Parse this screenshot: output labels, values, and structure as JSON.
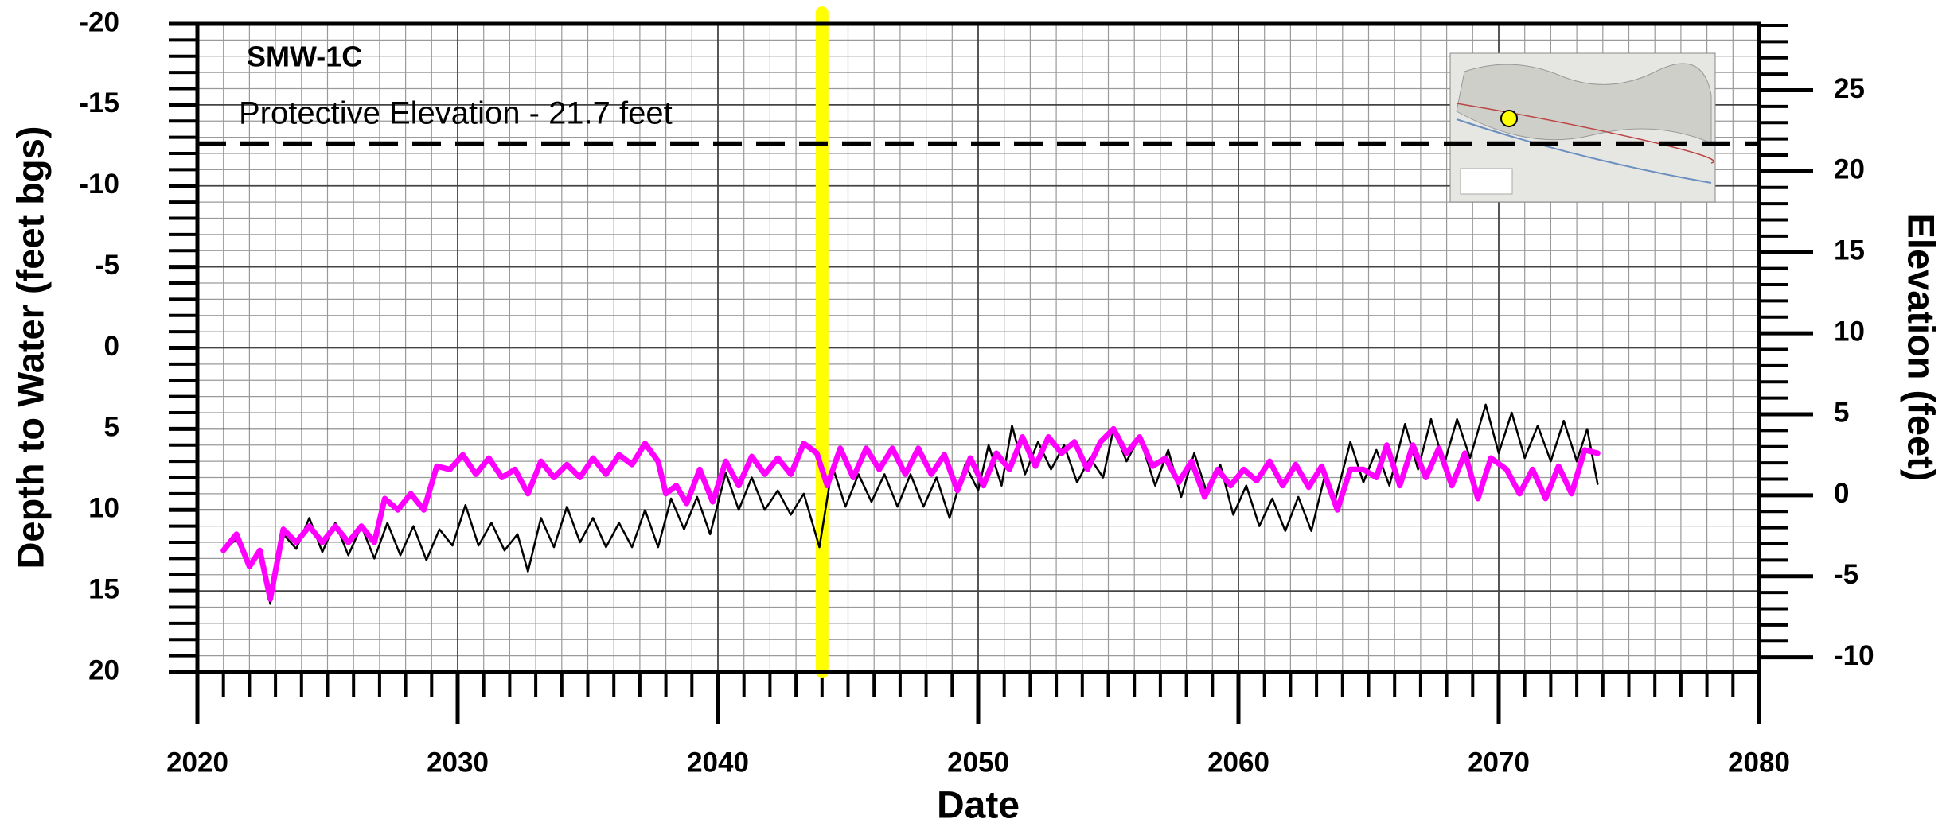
{
  "chart_data": {
    "type": "line",
    "title": "SMW-1C",
    "xlabel": "Date",
    "ylabel": "Depth to Water (feet bgs)",
    "y2label": "Elevation (feet)",
    "xlim": [
      2020,
      2080
    ],
    "xticks": [
      2020,
      2030,
      2040,
      2050,
      2060,
      2070,
      2080
    ],
    "xminorticks": [
      2021,
      2022,
      2023,
      2024,
      2025,
      2026,
      2027,
      2028,
      2029,
      2031,
      2032,
      2033,
      2034,
      2035,
      2036,
      2037,
      2038,
      2039,
      2041,
      2042,
      2043,
      2044,
      2045,
      2046,
      2047,
      2048,
      2049,
      2051,
      2052,
      2053,
      2054,
      2055,
      2056,
      2057,
      2058,
      2059,
      2061,
      2062,
      2063,
      2064,
      2065,
      2066,
      2067,
      2068,
      2069,
      2071,
      2072,
      2073,
      2074,
      2075,
      2076,
      2077,
      2078,
      2079
    ],
    "ylim": [
      20,
      -20
    ],
    "yticks": [
      -20,
      -15,
      -10,
      -5,
      0,
      5,
      10,
      15,
      20
    ],
    "yminorticks": [
      -19,
      -18,
      -17,
      -16,
      -14,
      -13,
      -12,
      -11,
      -9,
      -8,
      -7,
      -6,
      -4,
      -3,
      -2,
      -1,
      1,
      2,
      3,
      4,
      6,
      7,
      8,
      9,
      11,
      12,
      13,
      14,
      16,
      17,
      18,
      19
    ],
    "y2lim": [
      -10.9,
      29.1
    ],
    "y2ticks": [
      -10,
      -5,
      0,
      5,
      10,
      15,
      20,
      25
    ],
    "y2minorticks": [
      -9,
      -8,
      -7,
      -6,
      -4,
      -3,
      -2,
      -1,
      1,
      2,
      3,
      4,
      6,
      7,
      8,
      9,
      11,
      12,
      13,
      14,
      16,
      17,
      18,
      19,
      21,
      22,
      23,
      24,
      26,
      27,
      28,
      29
    ],
    "grid": true,
    "protective_elevation": {
      "value": 21.7,
      "label": "Protective Elevation - 21.7 feet",
      "axis": "y2",
      "color": "#000000"
    },
    "highlight_x": {
      "value": 2044.0,
      "color": "#ffff00"
    },
    "series": [
      {
        "color": "#000000",
        "x": [
          2021,
          2021.5,
          2022,
          2022.4,
          2022.8,
          2023.3,
          2023.8,
          2024.3,
          2024.8,
          2025.3,
          2025.8,
          2026.3,
          2026.8,
          2027.3,
          2027.8,
          2028.3,
          2028.8,
          2029.3,
          2029.8,
          2030.3,
          2030.8,
          2031.3,
          2031.8,
          2032.3,
          2032.7,
          2033.2,
          2033.7,
          2034.2,
          2034.7,
          2035.2,
          2035.7,
          2036.2,
          2036.7,
          2037.2,
          2037.7,
          2038.2,
          2038.7,
          2039.2,
          2039.7,
          2040.3,
          2040.8,
          2041.3,
          2041.8,
          2042.3,
          2042.8,
          2043.3,
          2043.9,
          2044.4,
          2044.9,
          2045.4,
          2045.9,
          2046.4,
          2046.9,
          2047.4,
          2047.9,
          2048.4,
          2048.9,
          2049.5,
          2050,
          2050.4,
          2050.9,
          2051.3,
          2051.8,
          2052.3,
          2052.8,
          2053.3,
          2053.8,
          2054.3,
          2054.8,
          2055.2,
          2055.7,
          2056.2,
          2056.8,
          2057.3,
          2057.8,
          2058.3,
          2058.8,
          2059.3,
          2059.8,
          2060.3,
          2060.8,
          2061.3,
          2061.8,
          2062.3,
          2062.8,
          2063.3,
          2063.7,
          2064.3,
          2064.8,
          2065.3,
          2065.8,
          2066.4,
          2066.9,
          2067.4,
          2067.9,
          2068.4,
          2068.9,
          2069.5,
          2070,
          2070.5,
          2071,
          2071.5,
          2072,
          2072.5,
          2073,
          2073.4,
          2073.8
        ],
        "values": [
          12.5,
          11.8,
          13.6,
          12.6,
          15.8,
          11.5,
          12.4,
          10.5,
          12.6,
          10.8,
          12.8,
          11,
          13,
          10.8,
          12.8,
          11,
          13.1,
          11.2,
          12.2,
          9.7,
          12.2,
          10.8,
          12.5,
          11.5,
          13.8,
          10.5,
          12.3,
          9.8,
          12,
          10.5,
          12.3,
          10.8,
          12.3,
          10,
          12.3,
          9.3,
          11.2,
          9.2,
          11.5,
          7.7,
          10,
          8,
          10,
          8.8,
          10.3,
          9,
          12.3,
          7.3,
          9.8,
          7.8,
          9.5,
          7.8,
          9.8,
          7.8,
          9.8,
          8,
          10.5,
          7.2,
          8.8,
          6,
          8.5,
          4.8,
          7.8,
          5.8,
          7.5,
          6,
          8.3,
          6.8,
          8,
          5,
          7,
          5.5,
          8.5,
          6.3,
          9.2,
          6.5,
          9,
          7.2,
          10.3,
          8.5,
          11,
          9.3,
          11.3,
          9.2,
          11.3,
          8,
          9.5,
          5.8,
          8.3,
          6.3,
          8.5,
          4.7,
          7.5,
          4.4,
          7.2,
          4.4,
          6.8,
          3.5,
          6.5,
          4,
          6.8,
          4.8,
          7,
          4.5,
          7,
          5,
          8.4
        ]
      },
      {
        "color": "#ff00ff",
        "x": [
          2021,
          2021.5,
          2022,
          2022.4,
          2022.8,
          2023.3,
          2023.8,
          2024.3,
          2024.8,
          2025.3,
          2025.8,
          2026.3,
          2026.8,
          2027.2,
          2027.7,
          2028.2,
          2028.7,
          2029.2,
          2029.7,
          2030.2,
          2030.7,
          2031.2,
          2031.7,
          2032.2,
          2032.7,
          2033.2,
          2033.7,
          2034.2,
          2034.7,
          2035.2,
          2035.7,
          2036.2,
          2036.7,
          2037.2,
          2037.7,
          2038,
          2038.4,
          2038.8,
          2039.3,
          2039.8,
          2040.3,
          2040.8,
          2041.3,
          2041.8,
          2042.3,
          2042.8,
          2043.3,
          2043.8,
          2044.2,
          2044.7,
          2045.2,
          2045.7,
          2046.2,
          2046.7,
          2047.2,
          2047.7,
          2048.2,
          2048.7,
          2049.2,
          2049.7,
          2050.2,
          2050.7,
          2051.2,
          2051.7,
          2052.2,
          2052.7,
          2053.2,
          2053.7,
          2054.2,
          2054.7,
          2055.2,
          2055.7,
          2056.2,
          2056.7,
          2057.2,
          2057.7,
          2058.2,
          2058.7,
          2059.2,
          2059.7,
          2060.2,
          2060.7,
          2061.2,
          2061.7,
          2062.2,
          2062.7,
          2063.2,
          2063.8,
          2064.3,
          2064.8,
          2065.3,
          2065.7,
          2066.2,
          2066.7,
          2067.2,
          2067.7,
          2068.2,
          2068.7,
          2069.2,
          2069.7,
          2070.3,
          2070.8,
          2071.3,
          2071.8,
          2072.3,
          2072.8,
          2073.3,
          2073.8
        ],
        "values": [
          12.5,
          11.5,
          13.5,
          12.5,
          15.5,
          11.2,
          12,
          11,
          12,
          11,
          12,
          11,
          12,
          9.3,
          10,
          9,
          10,
          7.3,
          7.5,
          6.6,
          7.8,
          6.8,
          8,
          7.5,
          9,
          7,
          8,
          7.2,
          8,
          6.8,
          7.8,
          6.6,
          7.2,
          5.9,
          7,
          9,
          8.5,
          9.6,
          7.5,
          9.5,
          7,
          8.5,
          6.7,
          7.8,
          6.8,
          7.8,
          5.9,
          6.5,
          8.5,
          6.2,
          8,
          6.2,
          7.5,
          6.2,
          7.8,
          6.2,
          7.8,
          6.6,
          8.8,
          6.8,
          8.5,
          6.5,
          7.5,
          5.5,
          7.3,
          5.5,
          6.5,
          5.8,
          7.5,
          5.8,
          5,
          6.5,
          5.5,
          7.3,
          6.8,
          8.3,
          7,
          9.2,
          7.5,
          8.5,
          7.5,
          8.2,
          7,
          8.5,
          7.2,
          8.6,
          7.3,
          10,
          7.5,
          7.5,
          8,
          6,
          8.5,
          6,
          8,
          6.2,
          8.5,
          6.5,
          9.3,
          6.8,
          7.5,
          9,
          7.5,
          9.3,
          7.3,
          9,
          6.3,
          6.5
        ]
      }
    ]
  }
}
